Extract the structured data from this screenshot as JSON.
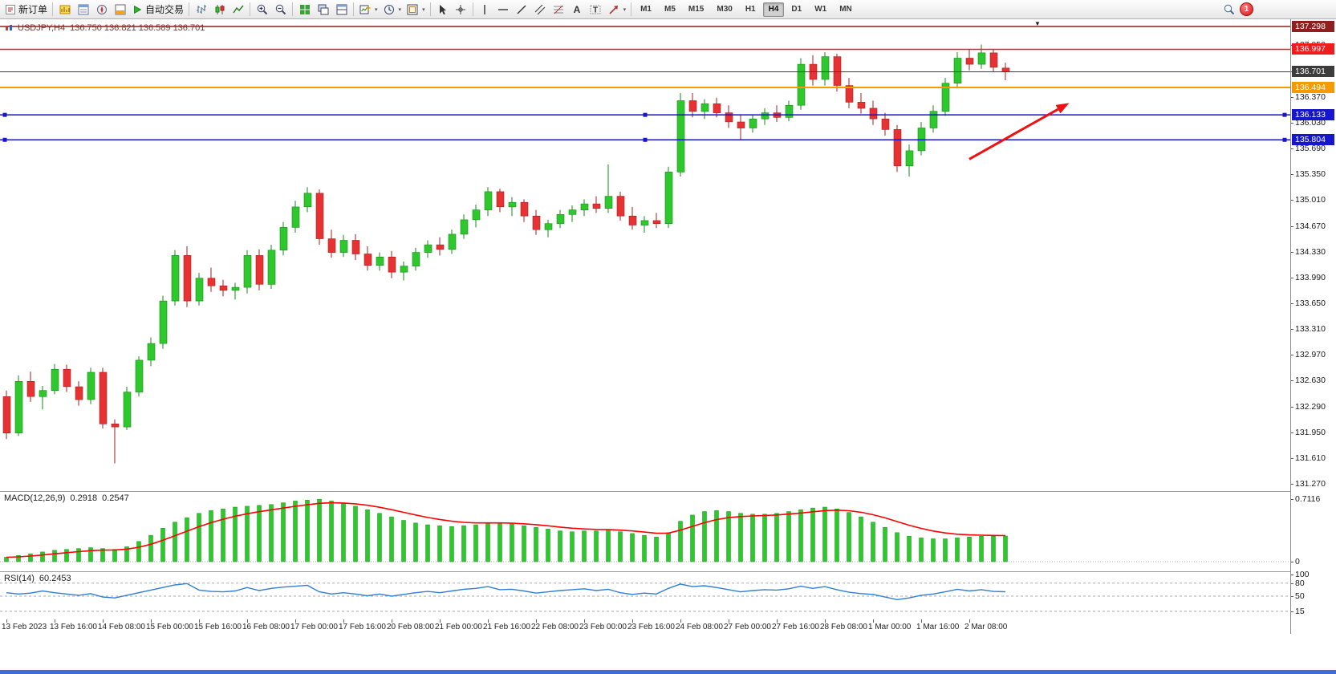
{
  "toolbar": {
    "new_order_label": "新订单",
    "autotrade_label": "自动交易",
    "timeframes": [
      "M1",
      "M5",
      "M15",
      "M30",
      "H1",
      "H4",
      "D1",
      "W1",
      "MN"
    ],
    "active_timeframe": "H4",
    "notification_count": "1"
  },
  "chart_title": {
    "symbol_period": "USDJPY,H4",
    "ohlc": "136.750 136.821 136.589 136.701"
  },
  "chart_data": {
    "type": "candlestick",
    "symbol": "USDJPY",
    "period": "H4",
    "current_bar": {
      "open": 136.75,
      "high": 136.821,
      "low": 136.589,
      "close": 136.701
    },
    "up_color": "#2ec82e",
    "down_color": "#e63232",
    "y_axis": {
      "min": 131.27,
      "max": 137.298,
      "tick_step": 0.34,
      "ticks": [
        "137.050",
        "136.710",
        "136.370",
        "136.030",
        "135.690",
        "135.350",
        "135.010",
        "134.670",
        "134.330",
        "133.990",
        "133.650",
        "133.310",
        "132.970",
        "132.630",
        "132.290",
        "131.950",
        "131.610",
        "131.270"
      ]
    },
    "x_axis": {
      "candles_per_label": 4,
      "time_labels": [
        "13 Feb 2023",
        "13 Feb 16:00",
        "14 Feb 08:00",
        "15 Feb 00:00",
        "15 Feb 16:00",
        "16 Feb 08:00",
        "17 Feb 00:00",
        "17 Feb 16:00",
        "20 Feb 08:00",
        "21 Feb 00:00",
        "21 Feb 16:00",
        "22 Feb 08:00",
        "23 Feb 00:00",
        "23 Feb 16:00",
        "24 Feb 08:00",
        "27 Feb 00:00",
        "27 Feb 16:00",
        "28 Feb 08:00",
        "1 Mar 00:00",
        "1 Mar 16:00",
        "2 Mar 08:00"
      ]
    },
    "candles_ohlc": [
      [
        132.42,
        132.5,
        131.86,
        131.94
      ],
      [
        131.94,
        132.7,
        131.9,
        132.62
      ],
      [
        132.62,
        132.75,
        132.35,
        132.42
      ],
      [
        132.42,
        132.56,
        132.25,
        132.5
      ],
      [
        132.5,
        132.85,
        132.45,
        132.78
      ],
      [
        132.78,
        132.84,
        132.48,
        132.55
      ],
      [
        132.55,
        132.62,
        132.3,
        132.38
      ],
      [
        132.38,
        132.8,
        132.32,
        132.74
      ],
      [
        132.74,
        132.8,
        132.0,
        132.06
      ],
      [
        132.06,
        132.12,
        131.54,
        132.02
      ],
      [
        132.02,
        132.55,
        131.98,
        132.48
      ],
      [
        132.48,
        132.95,
        132.42,
        132.9
      ],
      [
        132.9,
        133.2,
        132.82,
        133.12
      ],
      [
        133.12,
        133.75,
        133.05,
        133.68
      ],
      [
        133.68,
        134.35,
        133.62,
        134.28
      ],
      [
        134.28,
        134.4,
        133.6,
        133.68
      ],
      [
        133.68,
        134.05,
        133.62,
        133.98
      ],
      [
        133.98,
        134.12,
        133.8,
        133.88
      ],
      [
        133.88,
        133.96,
        133.74,
        133.82
      ],
      [
        133.82,
        133.92,
        133.7,
        133.86
      ],
      [
        133.86,
        134.35,
        133.78,
        134.28
      ],
      [
        134.28,
        134.36,
        133.82,
        133.9
      ],
      [
        133.9,
        134.42,
        133.84,
        134.35
      ],
      [
        134.35,
        134.72,
        134.28,
        134.65
      ],
      [
        134.65,
        135.0,
        134.58,
        134.92
      ],
      [
        134.92,
        135.18,
        134.85,
        135.1
      ],
      [
        135.1,
        135.15,
        134.42,
        134.5
      ],
      [
        134.5,
        134.62,
        134.25,
        134.32
      ],
      [
        134.32,
        134.55,
        134.26,
        134.48
      ],
      [
        134.48,
        134.56,
        134.22,
        134.3
      ],
      [
        134.3,
        134.4,
        134.08,
        134.15
      ],
      [
        134.15,
        134.32,
        134.08,
        134.26
      ],
      [
        134.26,
        134.34,
        133.98,
        134.06
      ],
      [
        134.06,
        134.2,
        133.95,
        134.14
      ],
      [
        134.14,
        134.38,
        134.08,
        134.32
      ],
      [
        134.32,
        134.48,
        134.25,
        134.42
      ],
      [
        134.42,
        134.52,
        134.28,
        134.36
      ],
      [
        134.36,
        134.62,
        134.3,
        134.56
      ],
      [
        134.56,
        134.82,
        134.5,
        134.75
      ],
      [
        134.75,
        134.95,
        134.65,
        134.88
      ],
      [
        134.88,
        135.18,
        134.8,
        135.12
      ],
      [
        135.12,
        135.16,
        134.85,
        134.92
      ],
      [
        134.92,
        135.05,
        134.8,
        134.98
      ],
      [
        134.98,
        135.02,
        134.72,
        134.8
      ],
      [
        134.8,
        134.88,
        134.55,
        134.62
      ],
      [
        134.62,
        134.75,
        134.52,
        134.7
      ],
      [
        134.7,
        134.88,
        134.64,
        134.82
      ],
      [
        134.82,
        134.94,
        134.72,
        134.88
      ],
      [
        134.88,
        135.02,
        134.8,
        134.96
      ],
      [
        134.96,
        135.06,
        134.84,
        134.9
      ],
      [
        134.9,
        135.48,
        134.84,
        135.06
      ],
      [
        135.06,
        135.12,
        134.74,
        134.8
      ],
      [
        134.8,
        134.92,
        134.62,
        134.68
      ],
      [
        134.68,
        134.8,
        134.58,
        134.74
      ],
      [
        134.74,
        134.84,
        134.64,
        134.7
      ],
      [
        134.7,
        135.45,
        134.64,
        135.38
      ],
      [
        135.38,
        136.42,
        135.32,
        136.32
      ],
      [
        136.32,
        136.42,
        136.1,
        136.18
      ],
      [
        136.18,
        136.34,
        136.08,
        136.28
      ],
      [
        136.28,
        136.36,
        136.1,
        136.16
      ],
      [
        136.16,
        136.26,
        135.96,
        136.04
      ],
      [
        136.04,
        136.14,
        135.8,
        135.96
      ],
      [
        135.96,
        136.14,
        135.9,
        136.08
      ],
      [
        136.08,
        136.22,
        136.0,
        136.16
      ],
      [
        136.16,
        136.26,
        136.04,
        136.1
      ],
      [
        136.1,
        136.32,
        136.05,
        136.26
      ],
      [
        136.26,
        136.88,
        136.2,
        136.8
      ],
      [
        136.8,
        136.92,
        136.52,
        136.6
      ],
      [
        136.6,
        136.96,
        136.52,
        136.9
      ],
      [
        136.9,
        136.94,
        136.44,
        136.52
      ],
      [
        136.52,
        136.62,
        136.22,
        136.3
      ],
      [
        136.3,
        136.42,
        136.15,
        136.22
      ],
      [
        136.22,
        136.32,
        136.0,
        136.08
      ],
      [
        136.08,
        136.16,
        135.86,
        135.94
      ],
      [
        135.94,
        136.0,
        135.38,
        135.46
      ],
      [
        135.46,
        135.74,
        135.32,
        135.66
      ],
      [
        135.66,
        136.04,
        135.6,
        135.96
      ],
      [
        135.96,
        136.26,
        135.9,
        136.18
      ],
      [
        136.18,
        136.62,
        136.12,
        136.55
      ],
      [
        136.55,
        136.96,
        136.48,
        136.88
      ],
      [
        136.88,
        137.0,
        136.72,
        136.8
      ],
      [
        136.8,
        137.06,
        136.74,
        136.95
      ],
      [
        136.95,
        137.0,
        136.7,
        136.76
      ],
      [
        136.75,
        136.821,
        136.589,
        136.701
      ]
    ],
    "levels": [
      {
        "label": "137.298",
        "price": 137.298,
        "color": "#8e1f1f",
        "width": 1.5,
        "selected": false
      },
      {
        "label": "136.997",
        "price": 136.997,
        "color": "#ee1c1c",
        "width": 1.5,
        "selected": false
      },
      {
        "label": "136.701",
        "price": 136.701,
        "color": "#3c3c3c",
        "width": 1,
        "selected": false,
        "role": "current-price"
      },
      {
        "label": "136.494",
        "price": 136.494,
        "color": "#f59a00",
        "width": 2,
        "selected": false
      },
      {
        "label": "136.133",
        "price": 136.133,
        "color": "#1616cc",
        "width": 1.5,
        "selected": true
      },
      {
        "label": "135.804",
        "price": 135.804,
        "color": "#1616cc",
        "width": 1.5,
        "selected": true
      }
    ],
    "trend_arrow": {
      "color": "#ee1111",
      "from": {
        "bar": 80,
        "price": 135.55
      },
      "to": {
        "bar": 88.3,
        "price": 136.29
      }
    },
    "macd": {
      "type": "histogram+line",
      "name": "MACD(12,26,9)",
      "main_value": "0.2918",
      "signal_value": "0.2547",
      "scale_top_label": "0.7116",
      "scale_zero_label": "0",
      "scale_top_value": 0.7116,
      "histogram_color": "#2ec82e",
      "signal_color": "#ff0000",
      "histogram": [
        0.05,
        0.07,
        0.09,
        0.11,
        0.13,
        0.14,
        0.15,
        0.16,
        0.15,
        0.14,
        0.17,
        0.23,
        0.3,
        0.38,
        0.45,
        0.5,
        0.55,
        0.58,
        0.6,
        0.62,
        0.63,
        0.64,
        0.65,
        0.67,
        0.69,
        0.7,
        0.71,
        0.69,
        0.66,
        0.63,
        0.59,
        0.55,
        0.51,
        0.47,
        0.44,
        0.42,
        0.41,
        0.4,
        0.41,
        0.42,
        0.44,
        0.44,
        0.43,
        0.41,
        0.39,
        0.37,
        0.35,
        0.34,
        0.35,
        0.35,
        0.36,
        0.34,
        0.32,
        0.3,
        0.28,
        0.33,
        0.46,
        0.53,
        0.57,
        0.58,
        0.57,
        0.55,
        0.54,
        0.54,
        0.55,
        0.57,
        0.59,
        0.61,
        0.62,
        0.6,
        0.56,
        0.51,
        0.45,
        0.39,
        0.33,
        0.29,
        0.27,
        0.26,
        0.26,
        0.27,
        0.28,
        0.29,
        0.29,
        0.2918
      ]
    },
    "rsi": {
      "type": "line",
      "name": "RSI(14)",
      "value": "60.2453",
      "line_color": "#2f7ed8",
      "scale_labels": [
        "100",
        "80",
        "50",
        "15"
      ],
      "level_lines": [
        80,
        50,
        15
      ],
      "values": [
        58,
        55,
        57,
        62,
        58,
        55,
        52,
        56,
        48,
        46,
        52,
        58,
        64,
        70,
        76,
        79,
        64,
        61,
        60,
        62,
        70,
        63,
        68,
        71,
        73,
        75,
        60,
        55,
        58,
        55,
        51,
        55,
        50,
        54,
        58,
        61,
        58,
        62,
        66,
        68,
        72,
        65,
        66,
        62,
        57,
        60,
        63,
        65,
        67,
        63,
        66,
        58,
        54,
        57,
        55,
        68,
        78,
        72,
        74,
        70,
        65,
        60,
        63,
        65,
        64,
        67,
        73,
        68,
        72,
        65,
        59,
        56,
        54,
        48,
        42,
        46,
        52,
        55,
        60,
        66,
        62,
        65,
        61,
        60.2453
      ]
    }
  }
}
